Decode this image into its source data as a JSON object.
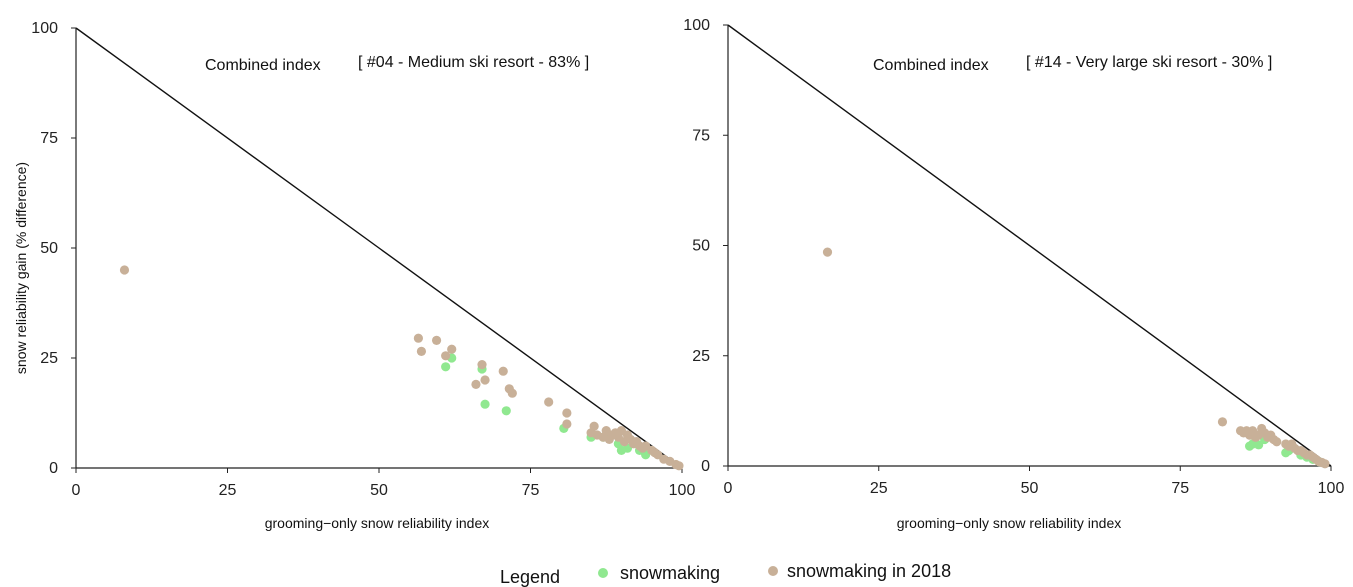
{
  "chart_data": [
    {
      "type": "scatter",
      "title": "Combined index",
      "subtitle": "[ #04 - Medium ski resort - 83% ]",
      "xlabel": "grooming−only snow reliability index",
      "ylabel": "snow reliability gain (% difference)",
      "xlim": [
        0,
        100
      ],
      "ylim": [
        0,
        100
      ],
      "xticks": [
        "0",
        "25",
        "50",
        "75",
        "100"
      ],
      "yticks": [
        "0",
        "25",
        "50",
        "75",
        "100"
      ],
      "reference_line": {
        "from": [
          0,
          100
        ],
        "to": [
          100,
          0
        ]
      },
      "series": [
        {
          "name": "snowmaking",
          "color": "#90e890",
          "points": [
            [
              61,
              23
            ],
            [
              62,
              25
            ],
            [
              67,
              22.5
            ],
            [
              67.5,
              14.5
            ],
            [
              71,
              13
            ],
            [
              80.5,
              9
            ],
            [
              85,
              7
            ],
            [
              87,
              7
            ],
            [
              88,
              7.5
            ],
            [
              89.5,
              5.5
            ],
            [
              90,
              4
            ],
            [
              91,
              4.5
            ],
            [
              93,
              4
            ],
            [
              94,
              3
            ]
          ]
        },
        {
          "name": "snowmaking in 2018",
          "color": "#c8b098",
          "points": [
            [
              8,
              45
            ],
            [
              56.5,
              29.5
            ],
            [
              57,
              26.5
            ],
            [
              59.5,
              29
            ],
            [
              61,
              25.5
            ],
            [
              62,
              27
            ],
            [
              66,
              19
            ],
            [
              67,
              23.5
            ],
            [
              67.5,
              20
            ],
            [
              70.5,
              22
            ],
            [
              71.5,
              18
            ],
            [
              72,
              17
            ],
            [
              78,
              15
            ],
            [
              81,
              12.5
            ],
            [
              81,
              10
            ],
            [
              85,
              8
            ],
            [
              85.5,
              9.5
            ],
            [
              86,
              7.5
            ],
            [
              87,
              7
            ],
            [
              87.5,
              8.5
            ],
            [
              88,
              6.5
            ],
            [
              88.5,
              7.5
            ],
            [
              89,
              8
            ],
            [
              89.5,
              7
            ],
            [
              90,
              8.5
            ],
            [
              90.5,
              6
            ],
            [
              91,
              7.5
            ],
            [
              91.5,
              6.5
            ],
            [
              92,
              5.5
            ],
            [
              92.5,
              6
            ],
            [
              93,
              5
            ],
            [
              93.5,
              4.5
            ],
            [
              94,
              5
            ],
            [
              95,
              4
            ],
            [
              95.5,
              3.5
            ],
            [
              96,
              3
            ],
            [
              97,
              2
            ],
            [
              98,
              1.5
            ],
            [
              99,
              0.8
            ],
            [
              99.5,
              0.5
            ]
          ]
        }
      ]
    },
    {
      "type": "scatter",
      "title": "Combined index",
      "subtitle": "[ #14 - Very large ski resort - 30% ]",
      "xlabel": "grooming−only snow reliability index",
      "ylabel": "",
      "xlim": [
        0,
        100
      ],
      "ylim": [
        0,
        100
      ],
      "xticks": [
        "0",
        "25",
        "50",
        "75",
        "100"
      ],
      "yticks": [
        "0",
        "25",
        "50",
        "75",
        "100"
      ],
      "reference_line": {
        "from": [
          0,
          100
        ],
        "to": [
          100,
          0
        ]
      },
      "series": [
        {
          "name": "snowmaking",
          "color": "#90e890",
          "points": [
            [
              86.5,
              4.5
            ],
            [
              87,
              5
            ],
            [
              88,
              4.8
            ],
            [
              89,
              6
            ],
            [
              92.5,
              3
            ],
            [
              93,
              3.5
            ],
            [
              95,
              2.5
            ],
            [
              96,
              2
            ],
            [
              97,
              1.5
            ],
            [
              98,
              1
            ]
          ]
        },
        {
          "name": "snowmaking in 2018",
          "color": "#c8b098",
          "points": [
            [
              16.5,
              48.5
            ],
            [
              82,
              10
            ],
            [
              85,
              8
            ],
            [
              85.5,
              7.5
            ],
            [
              86,
              8
            ],
            [
              86.5,
              7
            ],
            [
              87,
              8
            ],
            [
              87.5,
              6.5
            ],
            [
              88,
              7
            ],
            [
              88.5,
              8.5
            ],
            [
              89,
              7.5
            ],
            [
              89.5,
              6.5
            ],
            [
              90,
              7
            ],
            [
              90.5,
              6
            ],
            [
              91,
              5.5
            ],
            [
              92.5,
              5
            ],
            [
              93,
              4.5
            ],
            [
              93.5,
              5
            ],
            [
              94,
              4
            ],
            [
              94.5,
              3.5
            ],
            [
              95,
              3.5
            ],
            [
              95.5,
              3
            ],
            [
              96,
              2.5
            ],
            [
              96.5,
              2.5
            ],
            [
              97,
              2
            ],
            [
              97.5,
              1.5
            ],
            [
              98,
              1
            ],
            [
              98.5,
              0.8
            ],
            [
              99,
              0.5
            ]
          ]
        }
      ]
    }
  ],
  "legend": {
    "title": "Legend",
    "items": [
      {
        "label": "snowmaking",
        "color": "#90e890"
      },
      {
        "label": "snowmaking in 2018",
        "color": "#c8b098"
      }
    ]
  }
}
